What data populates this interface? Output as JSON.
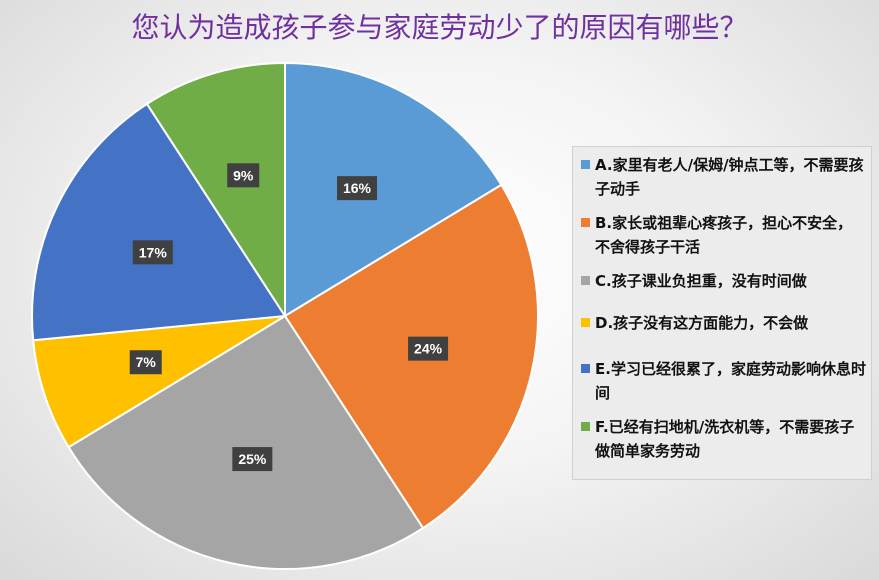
{
  "title": "您认为造成孩子参与家庭劳动少了的原因有哪些？",
  "chart_data": {
    "type": "pie",
    "title": "您认为造成孩子参与家庭劳动少了的原因有哪些？",
    "legend_position": "right",
    "slices": [
      {
        "name": "A.家里有老人/保姆/钟点工等，不需要孩子动手",
        "value": 16,
        "label": "16%",
        "color": "#5B9BD5"
      },
      {
        "name": "B.家长或祖辈心疼孩子，担心不安全，不舍得孩子干活",
        "value": 24,
        "label": "24%",
        "color": "#ED7D31"
      },
      {
        "name": "C.孩子课业负担重，没有时间做",
        "value": 25,
        "label": "25%",
        "color": "#A5A5A5"
      },
      {
        "name": "D.孩子没有这方面能力，不会做",
        "value": 7,
        "label": "7%",
        "color": "#FFC000"
      },
      {
        "name": "E.学习已经很累了，家庭劳动影响休息时间",
        "value": 17,
        "label": "17%",
        "color": "#4472C4"
      },
      {
        "name": "F.已经有扫地机/洗衣机等，不需要孩子做简单家务劳动",
        "value": 9,
        "label": "9%",
        "color": "#70AD47"
      }
    ]
  }
}
